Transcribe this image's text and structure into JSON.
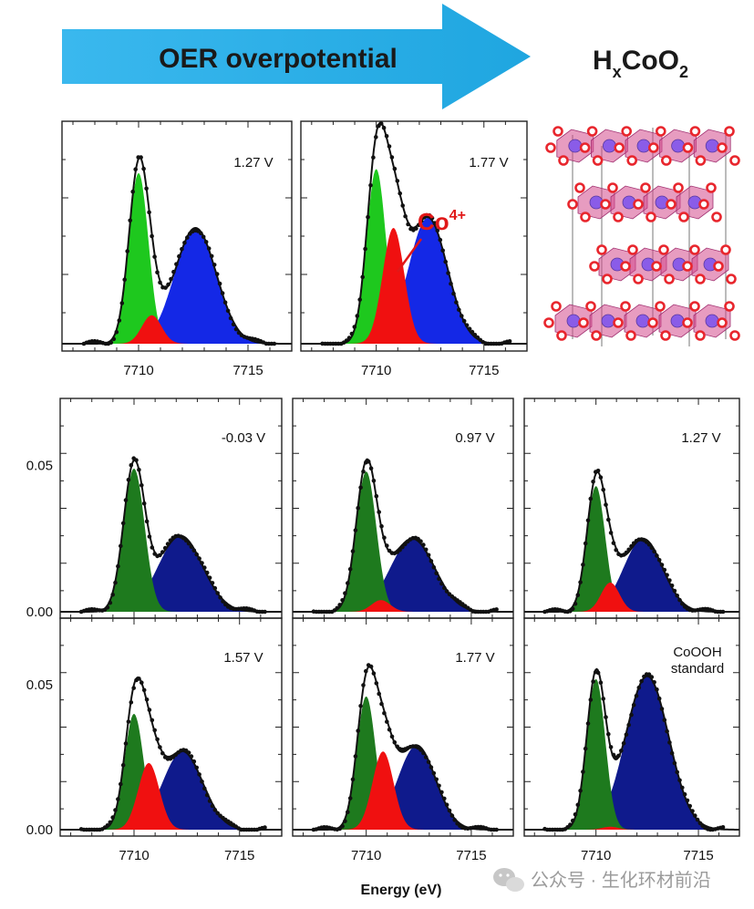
{
  "header": {
    "arrow_label": "OER overpotential",
    "formula": {
      "h": "H",
      "x": "x",
      "co": "CoO",
      "two": "2"
    }
  },
  "annotation": {
    "co_label": "Co",
    "co_sup": "4+"
  },
  "colors": {
    "arrow": "#2aaee6",
    "bright_green": "#1ec81e",
    "dark_green": "#1e7a1e",
    "red": "#f01010",
    "bright_blue": "#1428e6",
    "dark_blue": "#0f1a8c",
    "oxygen": "#e8262d",
    "cobalt": "#8a5ce8",
    "octahedron": "#d34a8c"
  },
  "chart_data": [
    {
      "type": "area",
      "panel": "top-1",
      "label": "1.27 V",
      "xlim": [
        7706.5,
        7717
      ],
      "x_ticks": [
        "7710",
        "7715"
      ],
      "y_ticks": [],
      "scheme": "bright",
      "series": [
        {
          "name": "green",
          "center": 7710.0,
          "sigma": 0.45,
          "amp": 0.84
        },
        {
          "name": "red",
          "center": 7710.6,
          "sigma": 0.45,
          "amp": 0.14
        },
        {
          "name": "blue",
          "center": 7712.6,
          "sigma": 0.95,
          "amp": 0.57
        }
      ],
      "data_points": true
    },
    {
      "type": "area",
      "panel": "top-2",
      "label": "1.77 V",
      "xlim": [
        7706.5,
        7717
      ],
      "x_ticks": [
        "7710",
        "7715"
      ],
      "y_ticks": [],
      "scheme": "bright",
      "series": [
        {
          "name": "green",
          "center": 7710.0,
          "sigma": 0.45,
          "amp": 0.86
        },
        {
          "name": "red",
          "center": 7710.8,
          "sigma": 0.5,
          "amp": 0.57
        },
        {
          "name": "blue",
          "center": 7712.4,
          "sigma": 0.9,
          "amp": 0.62
        }
      ],
      "data_points": true
    },
    {
      "type": "area",
      "panel": "bottom-1",
      "label": "-0.03 V",
      "xlim": [
        7706.5,
        7717
      ],
      "x_ticks": [
        "7710",
        "7715"
      ],
      "y_ticks": [
        "0.05",
        "0.00"
      ],
      "ylim": [
        0,
        0.07
      ],
      "scheme": "dark",
      "series": [
        {
          "name": "green",
          "center": 7710.0,
          "sigma": 0.5,
          "amp": 0.049
        },
        {
          "name": "red",
          "center": 7710.7,
          "sigma": 0.5,
          "amp": 0.0
        },
        {
          "name": "blue",
          "center": 7712.2,
          "sigma": 1.05,
          "amp": 0.026
        }
      ],
      "data_points": true
    },
    {
      "type": "area",
      "panel": "bottom-2",
      "label": "0.97 V",
      "xlim": [
        7706.5,
        7717
      ],
      "x_ticks": [
        "7710",
        "7715"
      ],
      "y_ticks": [],
      "ylim": [
        0,
        0.07
      ],
      "scheme": "dark",
      "series": [
        {
          "name": "green",
          "center": 7710.0,
          "sigma": 0.48,
          "amp": 0.048
        },
        {
          "name": "red",
          "center": 7710.7,
          "sigma": 0.45,
          "amp": 0.004
        },
        {
          "name": "blue",
          "center": 7712.2,
          "sigma": 1.05,
          "amp": 0.025
        }
      ],
      "data_points": true
    },
    {
      "type": "area",
      "panel": "bottom-3",
      "label": "1.27 V",
      "xlim": [
        7706.5,
        7717
      ],
      "x_ticks": [
        "7710",
        "7715"
      ],
      "y_ticks": [],
      "ylim": [
        0,
        0.07
      ],
      "scheme": "dark",
      "series": [
        {
          "name": "green",
          "center": 7710.0,
          "sigma": 0.45,
          "amp": 0.043
        },
        {
          "name": "red",
          "center": 7710.7,
          "sigma": 0.45,
          "amp": 0.01
        },
        {
          "name": "blue",
          "center": 7712.3,
          "sigma": 0.95,
          "amp": 0.025
        }
      ],
      "data_points": true
    },
    {
      "type": "area",
      "panel": "bottom-4",
      "label": "1.57 V",
      "xlim": [
        7706.5,
        7717
      ],
      "x_ticks": [
        "7710",
        "7715"
      ],
      "y_ticks": [
        "0.05",
        "0.00"
      ],
      "ylim": [
        0,
        0.07
      ],
      "scheme": "dark",
      "series": [
        {
          "name": "green",
          "center": 7710.0,
          "sigma": 0.45,
          "amp": 0.04
        },
        {
          "name": "red",
          "center": 7710.7,
          "sigma": 0.5,
          "amp": 0.023
        },
        {
          "name": "blue",
          "center": 7712.3,
          "sigma": 0.95,
          "amp": 0.027
        }
      ],
      "data_points": true
    },
    {
      "type": "area",
      "panel": "bottom-5",
      "label": "1.77 V",
      "xlim": [
        7706.5,
        7717
      ],
      "x_ticks": [
        "7710",
        "7715"
      ],
      "y_ticks": [],
      "ylim": [
        0,
        0.07
      ],
      "scheme": "dark",
      "series": [
        {
          "name": "green",
          "center": 7710.0,
          "sigma": 0.45,
          "amp": 0.046
        },
        {
          "name": "red",
          "center": 7710.8,
          "sigma": 0.5,
          "amp": 0.027
        },
        {
          "name": "blue",
          "center": 7712.4,
          "sigma": 0.9,
          "amp": 0.029
        }
      ],
      "data_points": true
    },
    {
      "type": "area",
      "panel": "bottom-6",
      "label": "CoOOH",
      "label2": "standard",
      "xlim": [
        7706.5,
        7717
      ],
      "x_ticks": [
        "7710",
        "7715"
      ],
      "y_ticks": [],
      "ylim": [
        0,
        0.07
      ],
      "scheme": "dark",
      "series": [
        {
          "name": "green",
          "center": 7710.0,
          "sigma": 0.45,
          "amp": 0.052
        },
        {
          "name": "red",
          "center": 7710.7,
          "sigma": 0.4,
          "amp": 0.001
        },
        {
          "name": "blue",
          "center": 7712.5,
          "sigma": 1.05,
          "amp": 0.053
        }
      ],
      "data_points": true
    }
  ],
  "xlabel": "Energy (eV)",
  "watermark": "公众号 · 生化环材前沿"
}
